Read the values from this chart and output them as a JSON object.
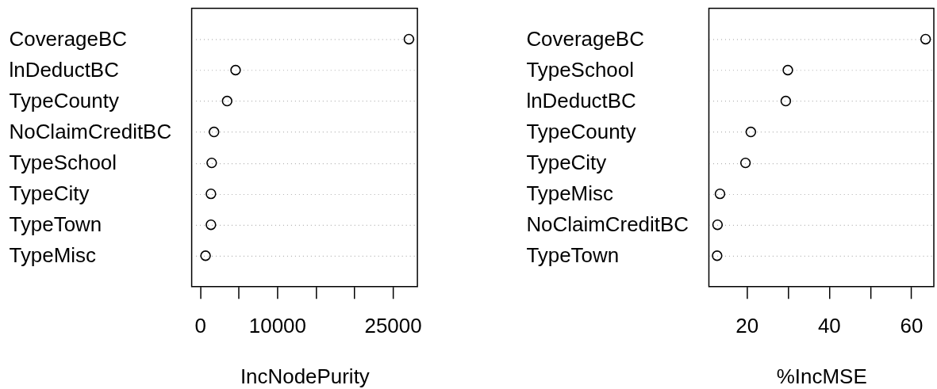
{
  "chart_data": [
    {
      "type": "scatter",
      "orientation": "horizontal",
      "categories": [
        "CoverageBC",
        "lnDeductBC",
        "TypeCounty",
        "NoClaimCreditBC",
        "TypeSchool",
        "TypeCity",
        "TypeTown",
        "TypeMisc"
      ],
      "values": [
        27100,
        4600,
        3500,
        1800,
        1500,
        1400,
        1400,
        700
      ],
      "color": "#000000",
      "xlabel": "IncNodePurity",
      "xlim": [
        -1100,
        28200
      ],
      "xticks": [
        0,
        {
          "value": 5000,
          "label": null
        },
        10000,
        {
          "value": 15000,
          "label": null
        },
        {
          "value": 20000,
          "label": null
        },
        25000
      ],
      "grid": "y",
      "marker": "circle"
    },
    {
      "type": "scatter",
      "orientation": "horizontal",
      "categories": [
        "CoverageBC",
        "TypeSchool",
        "lnDeductBC",
        "TypeCounty",
        "TypeCity",
        "TypeMisc",
        "NoClaimCreditBC",
        "TypeTown"
      ],
      "values": [
        63.5,
        30.0,
        29.5,
        21.0,
        19.7,
        13.5,
        12.9,
        12.8
      ],
      "color": "#000000",
      "xlabel": "%IncMSE",
      "xlim": [
        10.8,
        65.5
      ],
      "xticks": [
        20,
        {
          "value": 30,
          "label": null
        },
        40,
        {
          "value": 50,
          "label": null
        },
        60
      ],
      "grid": "y",
      "marker": "circle"
    }
  ]
}
